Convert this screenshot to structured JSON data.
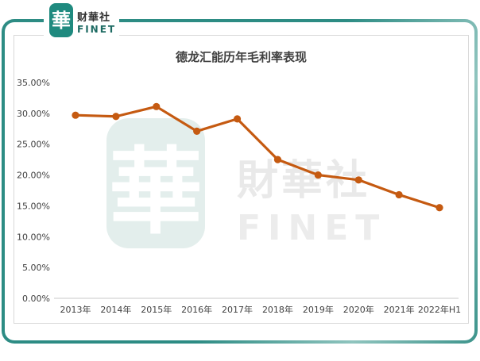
{
  "logo": {
    "mark_glyph": "華",
    "brand_cn": "财華社",
    "brand_en": "FINET"
  },
  "watermark": {
    "mark_glyph": "華",
    "brand_cn": "財華社",
    "brand_en": "FINET"
  },
  "chart_data": {
    "type": "line",
    "title": "德龙汇能历年毛利率表现",
    "categories": [
      "2013年",
      "2014年",
      "2015年",
      "2016年",
      "2017年",
      "2018年",
      "2019年",
      "2020年",
      "2021年",
      "2022年H1"
    ],
    "series": [
      {
        "name": "毛利率",
        "values": [
          29.7,
          29.5,
          31.1,
          27.1,
          29.1,
          22.5,
          20.0,
          19.2,
          16.8,
          14.7
        ]
      }
    ],
    "ylim": [
      0,
      35
    ],
    "ytick_step": 5,
    "ytick_labels": [
      "35.00%",
      "30.00%",
      "25.00%",
      "20.00%",
      "15.00%",
      "10.00%",
      "5.00%",
      "0.00%"
    ],
    "grid": false,
    "legend": "none",
    "line_color": "#C55A11",
    "marker": "circle"
  },
  "colors": {
    "accent_teal": "#2D8C84",
    "logo_teal": "#1F8A7F",
    "line_orange": "#C55A11",
    "card_border": "#D9D9D9",
    "axis_line": "#C9C9C9",
    "label_text": "#404040",
    "watermark_teal": "#E3EEEC",
    "watermark_gray": "#E9E9E9"
  }
}
